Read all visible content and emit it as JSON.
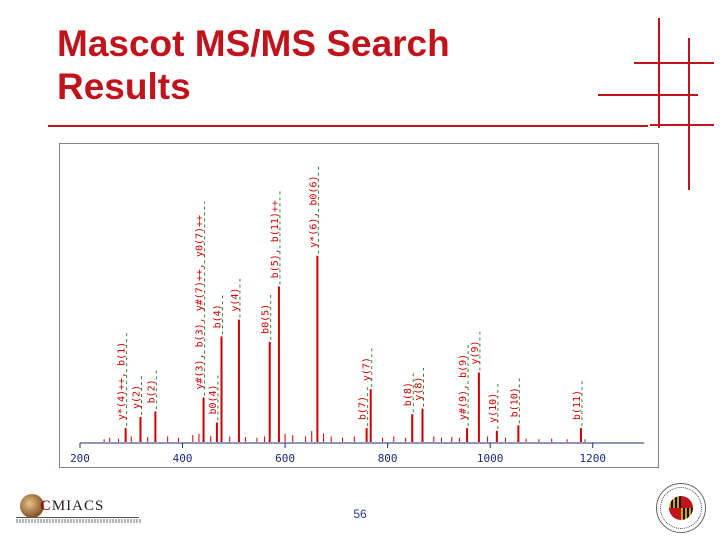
{
  "slide": {
    "title_line1": "Mascot MS/MS Search",
    "title_line2": "Results",
    "page_number": "56",
    "accent_color": "#c0141c",
    "left_logo_text": "CMIACS",
    "left_logo_subtitle": "Center for Multiscale Applied Mathematics and Computational Sciences",
    "right_logo_text": "UNIVERSITY OF MARYLAND"
  },
  "chart_data": {
    "type": "bar",
    "title": "",
    "xlabel": "",
    "ylabel": "",
    "xlim": [
      200,
      1300
    ],
    "x_ticks": [
      200,
      400,
      600,
      800,
      1000,
      1200
    ],
    "grid": false,
    "peak_color": "#cc0000",
    "label_color": "#cc0000",
    "tick_color": "#1c2a7a",
    "annotation_line_color": "#2e8b2e",
    "annotated_peaks": [
      {
        "x": 289,
        "y": 0.05,
        "label": "y*(4)++, b(1)"
      },
      {
        "x": 318,
        "y": 0.09,
        "label": "y(2)"
      },
      {
        "x": 347,
        "y": 0.11,
        "label": "b(2)"
      },
      {
        "x": 441,
        "y": 0.16,
        "label": "y#(3), b(3), y#(7)++, y0(7)++"
      },
      {
        "x": 467,
        "y": 0.07,
        "label": "b0(4)"
      },
      {
        "x": 476,
        "y": 0.38,
        "label": "b(4)"
      },
      {
        "x": 510,
        "y": 0.44,
        "label": "y(4)"
      },
      {
        "x": 570,
        "y": 0.36,
        "label": "b0(5)"
      },
      {
        "x": 588,
        "y": 0.56,
        "label": "b(5), b(11)++"
      },
      {
        "x": 663,
        "y": 0.67,
        "label": "y*(6), b0(6)"
      },
      {
        "x": 759,
        "y": 0.05,
        "label": "b(7)"
      },
      {
        "x": 767,
        "y": 0.19,
        "label": "y(7)"
      },
      {
        "x": 848,
        "y": 0.1,
        "label": "b(8)"
      },
      {
        "x": 868,
        "y": 0.12,
        "label": "y(8)"
      },
      {
        "x": 955,
        "y": 0.05,
        "label": "y#(9), b(9)"
      },
      {
        "x": 978,
        "y": 0.25,
        "label": "y(9)"
      },
      {
        "x": 1013,
        "y": 0.04,
        "label": "y(10)"
      },
      {
        "x": 1055,
        "y": 0.06,
        "label": "b(10)"
      },
      {
        "x": 1177,
        "y": 0.05,
        "label": "b(11)"
      }
    ],
    "minor_peaks": [
      {
        "x": 247,
        "y": 0.01
      },
      {
        "x": 258,
        "y": 0.015
      },
      {
        "x": 275,
        "y": 0.012
      },
      {
        "x": 300,
        "y": 0.02
      },
      {
        "x": 332,
        "y": 0.018
      },
      {
        "x": 371,
        "y": 0.02
      },
      {
        "x": 392,
        "y": 0.015
      },
      {
        "x": 420,
        "y": 0.025
      },
      {
        "x": 432,
        "y": 0.03
      },
      {
        "x": 455,
        "y": 0.022
      },
      {
        "x": 492,
        "y": 0.02
      },
      {
        "x": 523,
        "y": 0.018
      },
      {
        "x": 545,
        "y": 0.015
      },
      {
        "x": 560,
        "y": 0.02
      },
      {
        "x": 600,
        "y": 0.03
      },
      {
        "x": 615,
        "y": 0.025
      },
      {
        "x": 640,
        "y": 0.02
      },
      {
        "x": 652,
        "y": 0.04
      },
      {
        "x": 675,
        "y": 0.03
      },
      {
        "x": 690,
        "y": 0.02
      },
      {
        "x": 712,
        "y": 0.015
      },
      {
        "x": 735,
        "y": 0.02
      },
      {
        "x": 790,
        "y": 0.015
      },
      {
        "x": 812,
        "y": 0.02
      },
      {
        "x": 835,
        "y": 0.015
      },
      {
        "x": 890,
        "y": 0.02
      },
      {
        "x": 905,
        "y": 0.015
      },
      {
        "x": 925,
        "y": 0.018
      },
      {
        "x": 940,
        "y": 0.015
      },
      {
        "x": 995,
        "y": 0.02
      },
      {
        "x": 1030,
        "y": 0.015
      },
      {
        "x": 1070,
        "y": 0.012
      },
      {
        "x": 1095,
        "y": 0.01
      },
      {
        "x": 1120,
        "y": 0.012
      },
      {
        "x": 1150,
        "y": 0.01
      },
      {
        "x": 1185,
        "y": 0.01
      }
    ]
  }
}
